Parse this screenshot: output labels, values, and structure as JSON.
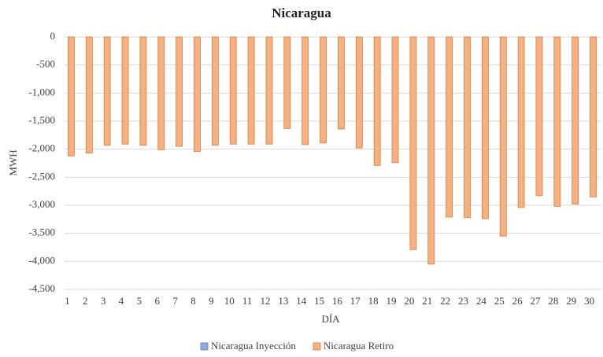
{
  "chart_data": {
    "type": "bar",
    "title": "Nicaragua",
    "x_label": "DÍA",
    "y_label": "MWH",
    "categories": [
      "1",
      "2",
      "3",
      "4",
      "5",
      "6",
      "7",
      "8",
      "9",
      "10",
      "11",
      "12",
      "13",
      "14",
      "15",
      "16",
      "17",
      "18",
      "19",
      "20",
      "21",
      "22",
      "23",
      "24",
      "25",
      "26",
      "27",
      "28",
      "29",
      "30"
    ],
    "series": [
      {
        "name": "Nicaragua Inyección",
        "color": "#8faadc",
        "values": [
          0,
          0,
          0,
          0,
          0,
          0,
          0,
          0,
          0,
          0,
          0,
          0,
          0,
          0,
          0,
          0,
          0,
          0,
          0,
          0,
          0,
          0,
          0,
          0,
          0,
          0,
          0,
          0,
          0,
          0
        ]
      },
      {
        "name": "Nicaragua Retiro",
        "color": "#f4b183",
        "values": [
          -2120,
          -2070,
          -1930,
          -1910,
          -1930,
          -2010,
          -1950,
          -2040,
          -1930,
          -1910,
          -1910,
          -1910,
          -1630,
          -1920,
          -1890,
          -1640,
          -1980,
          -2290,
          -2240,
          -3790,
          -4050,
          -3210,
          -3220,
          -3240,
          -3550,
          -3040,
          -2830,
          -3020,
          -2980,
          -2850
        ]
      }
    ],
    "ylim": [
      -4500,
      0
    ],
    "yticks": [
      0,
      -500,
      {
        "value": -1000,
        "label": "-1,000"
      },
      {
        "value": -1500,
        "label": "-1,500"
      },
      {
        "value": -2000,
        "label": "-2,000"
      },
      {
        "value": -2500,
        "label": "-2,500"
      },
      {
        "value": -3000,
        "label": "-3,000"
      },
      {
        "value": -3500,
        "label": "-3,500"
      },
      {
        "value": -4000,
        "label": "-4,000"
      },
      {
        "value": -4500,
        "label": "-4,500"
      }
    ],
    "grid": true,
    "legend": "bottom"
  }
}
